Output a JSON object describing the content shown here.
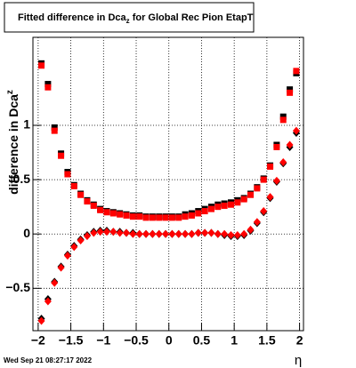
{
  "chart_data": {
    "type": "scatter",
    "title": {
      "main": "Fitted difference in Dca",
      "sub": "z",
      "rest": " for Global Rec Pion EtapT"
    },
    "x_label": "η",
    "y_label": {
      "main": "difference in Dca",
      "sub": "z"
    },
    "footer": "Wed Sep 21 08:27:17 2022",
    "xlim": [
      -2.08,
      2.06
    ],
    "ylim": [
      -0.89,
      1.81
    ],
    "xticks": [
      {
        "value": -2,
        "label": "−2"
      },
      {
        "value": -1.5,
        "label": "−1.5"
      },
      {
        "value": -1,
        "label": "−1"
      },
      {
        "value": -0.5,
        "label": "−0.5"
      },
      0,
      0.5,
      1,
      1.5,
      2
    ],
    "yticks": [
      {
        "value": -0.5,
        "label": "−0.5"
      },
      0,
      0.5,
      1
    ],
    "grid": true,
    "x": [
      -1.95,
      -1.85,
      -1.75,
      -1.65,
      -1.55,
      -1.45,
      -1.35,
      -1.25,
      -1.15,
      -1.05,
      -0.95,
      -0.85,
      -0.75,
      -0.65,
      -0.55,
      -0.45,
      -0.35,
      -0.25,
      -0.15,
      -0.05,
      0.05,
      0.15,
      0.25,
      0.35,
      0.45,
      0.55,
      0.65,
      0.75,
      0.85,
      0.95,
      1.05,
      1.15,
      1.25,
      1.35,
      1.45,
      1.55,
      1.65,
      1.75,
      1.85,
      1.95
    ],
    "series": [
      {
        "color": "#000000",
        "marker": "square",
        "values": [
          1.57,
          1.38,
          0.98,
          0.74,
          0.57,
          0.45,
          0.37,
          0.31,
          0.27,
          0.23,
          0.21,
          0.2,
          0.19,
          0.18,
          0.17,
          0.17,
          0.16,
          0.16,
          0.16,
          0.16,
          0.16,
          0.16,
          0.18,
          0.19,
          0.21,
          0.23,
          0.25,
          0.27,
          0.28,
          0.29,
          0.31,
          0.33,
          0.37,
          0.43,
          0.51,
          0.63,
          0.82,
          1.08,
          1.33,
          1.48
        ]
      },
      {
        "color": "#000000",
        "marker": "diamond",
        "values": [
          -0.78,
          -0.6,
          -0.44,
          -0.3,
          -0.19,
          -0.11,
          -0.05,
          -0.01,
          0.02,
          0.03,
          0.03,
          0.02,
          0.02,
          0.01,
          0.01,
          0.0,
          0.0,
          0.0,
          0.0,
          0.0,
          0.0,
          0.0,
          0.0,
          0.0,
          0.01,
          0.01,
          0.01,
          0.0,
          -0.01,
          -0.02,
          -0.02,
          -0.01,
          0.03,
          0.1,
          0.2,
          0.33,
          0.48,
          0.65,
          0.8,
          0.93
        ]
      },
      {
        "color": "#ff0000",
        "marker": "square",
        "values": [
          1.55,
          1.35,
          0.95,
          0.72,
          0.55,
          0.44,
          0.36,
          0.3,
          0.26,
          0.22,
          0.2,
          0.19,
          0.18,
          0.17,
          0.16,
          0.16,
          0.15,
          0.15,
          0.15,
          0.15,
          0.15,
          0.15,
          0.16,
          0.17,
          0.19,
          0.21,
          0.23,
          0.25,
          0.26,
          0.27,
          0.29,
          0.32,
          0.36,
          0.42,
          0.5,
          0.62,
          0.8,
          1.05,
          1.3,
          1.5
        ]
      },
      {
        "color": "#ff0000",
        "marker": "diamond",
        "values": [
          -0.8,
          -0.62,
          -0.45,
          -0.31,
          -0.2,
          -0.12,
          -0.06,
          -0.02,
          0.01,
          0.02,
          0.02,
          0.02,
          0.01,
          0.01,
          0.0,
          0.0,
          0.0,
          0.0,
          0.0,
          0.0,
          0.0,
          0.0,
          0.0,
          0.0,
          0.01,
          0.01,
          0.01,
          0.0,
          0.0,
          -0.01,
          -0.01,
          0.0,
          0.04,
          0.11,
          0.21,
          0.34,
          0.49,
          0.66,
          0.82,
          0.95
        ]
      }
    ]
  }
}
